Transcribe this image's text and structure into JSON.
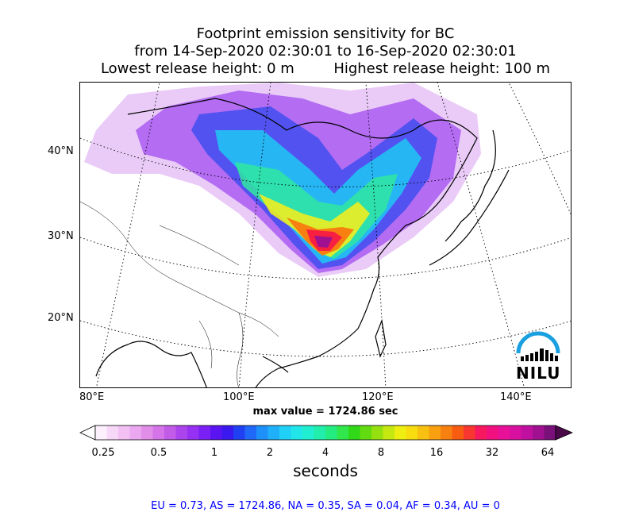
{
  "title": {
    "line1": "Footprint emission sensitivity for BC",
    "line2": "from 14-Sep-2020 02:30:01 to 16-Sep-2020 02:30:01",
    "line3a": "Lowest release height: 0 m",
    "line3b": "Highest release height: 100 m"
  },
  "map": {
    "lat_labels": [
      "40°N",
      "30°N",
      "20°N"
    ],
    "lon_labels": [
      "80°E",
      "100°E",
      "120°E",
      "140°E"
    ],
    "max_value": "max value = 1724.86 sec",
    "logo_text": "NILU"
  },
  "colorbar": {
    "ticks": [
      "0.25",
      "0.5",
      "1",
      "2",
      "4",
      "8",
      "16",
      "32",
      "64"
    ],
    "label": "seconds",
    "colors": [
      "#fdf0fd",
      "#f8d8f8",
      "#f3c0f3",
      "#eba8f0",
      "#e08ee8",
      "#d474e8",
      "#c25ce8",
      "#ac44ee",
      "#9630f2",
      "#7a20f4",
      "#5a14f2",
      "#3a18f0",
      "#2040f4",
      "#2068f8",
      "#1e90fa",
      "#20b0fa",
      "#20d0f6",
      "#20e6ea",
      "#20eed0",
      "#20eeaa",
      "#24ec80",
      "#30e84c",
      "#30d818",
      "#62dc10",
      "#96e010",
      "#c4e810",
      "#eeee10",
      "#f8dc10",
      "#f8c010",
      "#f8a010",
      "#f88010",
      "#f85c10",
      "#f83830",
      "#f81860",
      "#f01080",
      "#e81098",
      "#d810a0",
      "#c010a0",
      "#a01090",
      "#7a107a"
    ]
  },
  "stats": "EU = 0.73,  AS = 1724.86,  NA = 0.35,  SA = 0.04,  AF = 0.34,  AU = 0"
}
